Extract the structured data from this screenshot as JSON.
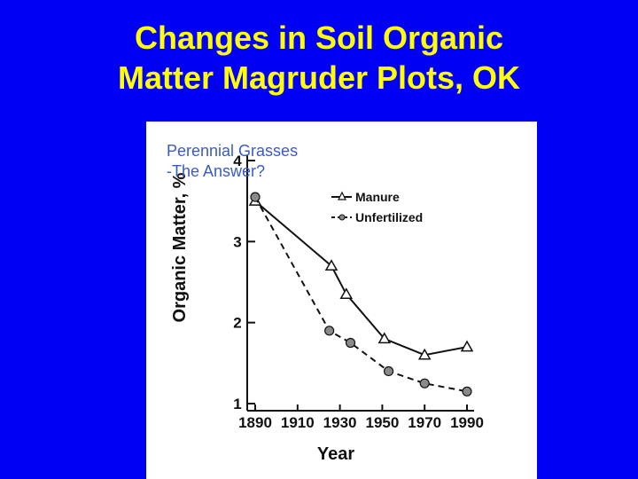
{
  "slide": {
    "title_line1": "Changes in Soil Organic",
    "title_line2": "Matter Magruder Plots, OK"
  },
  "figure": {
    "caption_line1": "Perennial Grasses",
    "caption_line2": "-The Answer?"
  },
  "colors": {
    "background": "#0000f6",
    "title": "#ffff00",
    "caption": "#3a5bc7",
    "plot_ink": "#111111",
    "unfertilized_marker": "#8a8a8a"
  },
  "chart_data": {
    "type": "line",
    "title": "",
    "xlabel": "Year",
    "ylabel": "Organic Matter, %",
    "xlim": [
      1890,
      1990
    ],
    "ylim": [
      1,
      4
    ],
    "x_ticks": [
      1890,
      1910,
      1930,
      1950,
      1970,
      1990
    ],
    "y_ticks": [
      1,
      2,
      3,
      4
    ],
    "grid": false,
    "legend_position": "top-right",
    "series": [
      {
        "name": "Manure",
        "marker": "triangle",
        "line_style": "solid",
        "x": [
          1890,
          1926,
          1933,
          1951,
          1970,
          1990
        ],
        "y": [
          3.5,
          2.7,
          2.35,
          1.8,
          1.6,
          1.7
        ]
      },
      {
        "name": "Unfertilized",
        "marker": "circle",
        "line_style": "dashed",
        "x": [
          1890,
          1925,
          1935,
          1953,
          1970,
          1990
        ],
        "y": [
          3.55,
          1.9,
          1.75,
          1.4,
          1.25,
          1.15
        ]
      }
    ]
  }
}
